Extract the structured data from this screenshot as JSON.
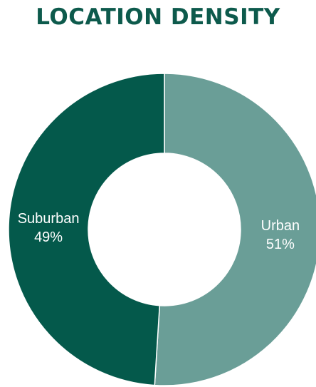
{
  "colors": {
    "title": "#0d5a4c",
    "background": "#ffffff",
    "divider": "#ffffff"
  },
  "chart_data": {
    "type": "pie",
    "title": "LOCATION DENSITY",
    "donut": true,
    "categories": [
      "Urban",
      "Suburban"
    ],
    "values": [
      51,
      49
    ],
    "value_labels": [
      "51%",
      "49%"
    ],
    "colors": [
      "#6a9e97",
      "#04594b"
    ],
    "start": "12 o'clock, clockwise"
  }
}
